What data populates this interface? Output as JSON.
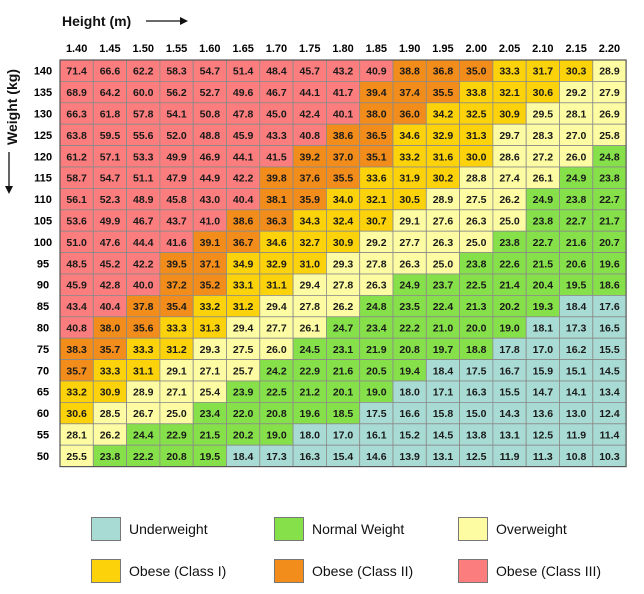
{
  "chart_data": {
    "type": "heatmap",
    "xlabel": "Height  (m)",
    "ylabel": "Weight  (kg)",
    "x": [
      "1.40",
      "1.45",
      "1.50",
      "1.55",
      "1.60",
      "1.65",
      "1.70",
      "1.75",
      "1.80",
      "1.85",
      "1.90",
      "1.95",
      "2.00",
      "2.05",
      "2.10",
      "2.15",
      "2.20"
    ],
    "y": [
      "140",
      "135",
      "130",
      "125",
      "120",
      "115",
      "110",
      "105",
      "100",
      "95",
      "90",
      "85",
      "80",
      "75",
      "70",
      "65",
      "60",
      "55",
      "50"
    ],
    "values": [
      [
        71.4,
        66.6,
        62.2,
        58.3,
        54.7,
        51.4,
        48.4,
        45.7,
        43.2,
        40.9,
        38.8,
        36.8,
        35.0,
        33.3,
        31.7,
        30.3,
        28.9
      ],
      [
        68.9,
        64.2,
        60.0,
        56.2,
        52.7,
        49.6,
        46.7,
        44.1,
        41.7,
        39.4,
        37.4,
        35.5,
        33.8,
        32.1,
        30.6,
        29.2,
        27.9
      ],
      [
        66.3,
        61.8,
        57.8,
        54.1,
        50.8,
        47.8,
        45.0,
        42.4,
        40.1,
        38.0,
        36.0,
        34.2,
        32.5,
        30.9,
        29.5,
        28.1,
        26.9
      ],
      [
        63.8,
        59.5,
        55.6,
        52.0,
        48.8,
        45.9,
        43.3,
        40.8,
        38.6,
        36.5,
        34.6,
        32.9,
        31.3,
        29.7,
        28.3,
        27.0,
        25.8
      ],
      [
        61.2,
        57.1,
        53.3,
        49.9,
        46.9,
        44.1,
        41.5,
        39.2,
        37.0,
        35.1,
        33.2,
        31.6,
        30.0,
        28.6,
        27.2,
        26.0,
        24.8
      ],
      [
        58.7,
        54.7,
        51.1,
        47.9,
        44.9,
        42.2,
        39.8,
        37.6,
        35.5,
        33.6,
        31.9,
        30.2,
        28.8,
        27.4,
        26.1,
        24.9,
        23.8
      ],
      [
        56.1,
        52.3,
        48.9,
        45.8,
        43.0,
        40.4,
        38.1,
        35.9,
        34.0,
        32.1,
        30.5,
        28.9,
        27.5,
        26.2,
        24.9,
        23.8,
        22.7
      ],
      [
        53.6,
        49.9,
        46.7,
        43.7,
        41.0,
        38.6,
        36.3,
        34.3,
        32.4,
        30.7,
        29.1,
        27.6,
        26.3,
        25.0,
        23.8,
        22.7,
        21.7
      ],
      [
        51.0,
        47.6,
        44.4,
        41.6,
        39.1,
        36.7,
        34.6,
        32.7,
        30.9,
        29.2,
        27.7,
        26.3,
        25.0,
        23.8,
        22.7,
        21.6,
        20.7
      ],
      [
        48.5,
        45.2,
        42.2,
        39.5,
        37.1,
        34.9,
        32.9,
        31.0,
        29.3,
        27.8,
        26.3,
        25.0,
        23.8,
        22.6,
        21.5,
        20.6,
        19.6
      ],
      [
        45.9,
        42.8,
        40.0,
        37.2,
        35.2,
        33.1,
        31.1,
        29.4,
        27.8,
        26.3,
        24.9,
        23.7,
        22.5,
        21.4,
        20.4,
        19.5,
        18.6
      ],
      [
        43.4,
        40.4,
        37.8,
        35.4,
        33.2,
        31.2,
        29.4,
        27.8,
        26.2,
        24.8,
        23.5,
        22.4,
        21.3,
        20.2,
        19.3,
        18.4,
        17.6
      ],
      [
        40.8,
        38.0,
        35.6,
        33.3,
        31.3,
        29.4,
        27.7,
        26.1,
        24.7,
        23.4,
        22.2,
        21.0,
        20.0,
        19.0,
        18.1,
        17.3,
        16.5
      ],
      [
        38.3,
        35.7,
        33.3,
        31.2,
        29.3,
        27.5,
        26.0,
        24.5,
        23.1,
        21.9,
        20.8,
        19.7,
        18.8,
        17.8,
        17.0,
        16.2,
        15.5
      ],
      [
        35.7,
        33.3,
        31.1,
        29.1,
        27.1,
        25.7,
        24.2,
        22.9,
        21.6,
        20.5,
        19.4,
        18.4,
        17.5,
        16.7,
        15.9,
        15.1,
        14.5
      ],
      [
        33.2,
        30.9,
        28.9,
        27.1,
        25.4,
        23.9,
        22.5,
        21.2,
        20.1,
        19.0,
        18.0,
        17.1,
        16.3,
        15.5,
        14.7,
        14.1,
        13.4
      ],
      [
        30.6,
        28.5,
        26.7,
        25.0,
        23.4,
        22.0,
        20.8,
        19.6,
        18.5,
        17.5,
        16.6,
        15.8,
        15.0,
        14.3,
        13.6,
        13.0,
        12.4
      ],
      [
        28.1,
        26.2,
        24.4,
        22.9,
        21.5,
        20.2,
        19.0,
        18.0,
        17.0,
        16.1,
        15.2,
        14.5,
        13.8,
        13.1,
        12.5,
        11.9,
        11.4
      ],
      [
        25.5,
        23.8,
        22.2,
        20.8,
        19.5,
        18.4,
        17.3,
        16.3,
        15.4,
        14.6,
        13.9,
        13.1,
        12.5,
        11.9,
        11.3,
        10.8,
        10.3
      ]
    ],
    "categories": [
      {
        "name": "Underweight",
        "max": 18.5,
        "color": "#a8dbd4"
      },
      {
        "name": "Normal Weight",
        "min": 18.5,
        "max": 25,
        "color": "#86e04a"
      },
      {
        "name": "Overweight",
        "min": 25,
        "max": 30,
        "color": "#fdfca3"
      },
      {
        "name": "Obese (Class I)",
        "min": 30,
        "max": 35,
        "color": "#fcd20a"
      },
      {
        "name": "Obese (Class II)",
        "min": 35,
        "max": 40,
        "color": "#f28c1a"
      },
      {
        "name": "Obese (Class III)",
        "min": 40,
        "color": "#fb7d7d"
      }
    ],
    "legend_placement": "bottom",
    "grid": true
  }
}
